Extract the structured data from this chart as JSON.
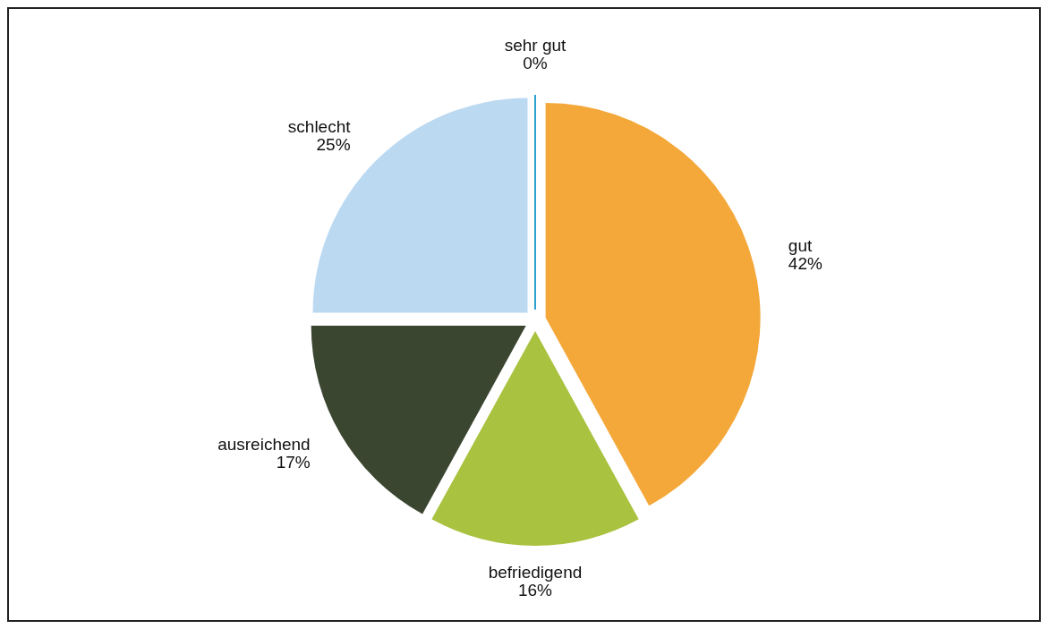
{
  "chart_data": {
    "type": "pie",
    "categories": [
      "sehr gut",
      "gut",
      "befriedigend",
      "ausreichend",
      "schlecht"
    ],
    "values": [
      0,
      42,
      16,
      17,
      25
    ],
    "value_labels": [
      "0%",
      "42%",
      "16%",
      "17%",
      "25%"
    ],
    "colors": [
      "#2a9fd0",
      "#f4a83a",
      "#a9c23f",
      "#3b4631",
      "#bcd9f2"
    ]
  }
}
